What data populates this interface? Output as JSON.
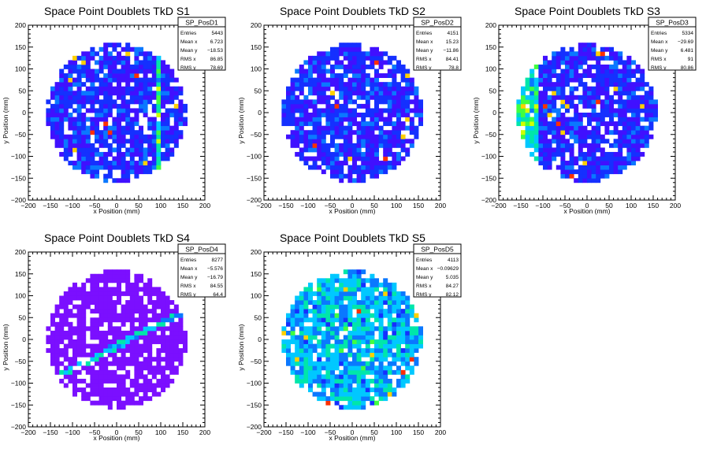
{
  "palette": [
    "#7b0fff",
    "#4010ff",
    "#1530ff",
    "#0a78ff",
    "#00c8ff",
    "#00e6aa",
    "#40ff40",
    "#d0ff00",
    "#ffd000",
    "#ff3000"
  ],
  "chart_data": [
    {
      "type": "heatmap",
      "title": "Space Point Doublets TkD S1",
      "xlabel": "x Position (mm)",
      "ylabel": "y Position (mm)",
      "xlim": [
        -200,
        200
      ],
      "ylim": [
        -200,
        200
      ],
      "xticks": [
        "−200",
        "−150",
        "−100",
        "−50",
        "0",
        "50",
        "100",
        "150",
        "200"
      ],
      "yticks": [
        "−200",
        "−150",
        "−100",
        "−50",
        "0",
        "50",
        "100",
        "150",
        "200"
      ],
      "stats": {
        "name": "SP_PosD1",
        "rows": [
          [
            "Entries",
            "5443"
          ],
          [
            "Mean x",
            "6.723"
          ],
          [
            "Mean y",
            "−18.53"
          ],
          [
            "RMS x",
            "86.85"
          ],
          [
            "RMS y",
            "78.69"
          ]
        ]
      },
      "pattern": "vertical-band"
    },
    {
      "type": "heatmap",
      "title": "Space Point Doublets TkD S2",
      "xlabel": "x Position (mm)",
      "ylabel": "y Position (mm)",
      "xlim": [
        -200,
        200
      ],
      "ylim": [
        -200,
        200
      ],
      "xticks": [
        "−200",
        "−150",
        "−100",
        "−50",
        "0",
        "50",
        "100",
        "150",
        "200"
      ],
      "yticks": [
        "−200",
        "−150",
        "−100",
        "−50",
        "0",
        "50",
        "100",
        "150",
        "200"
      ],
      "stats": {
        "name": "SP_PosD2",
        "rows": [
          [
            "Entries",
            "4151"
          ],
          [
            "Mean x",
            "15.23"
          ],
          [
            "Mean y",
            "−11.86"
          ],
          [
            "RMS x",
            "84.41"
          ],
          [
            "RMS y",
            "78.8"
          ]
        ]
      },
      "pattern": "uniform"
    },
    {
      "type": "heatmap",
      "title": "Space Point Doublets TkD S3",
      "xlabel": "x Position (mm)",
      "ylabel": "y Position (mm)",
      "xlim": [
        -200,
        200
      ],
      "ylim": [
        -200,
        200
      ],
      "xticks": [
        "−200",
        "−150",
        "−100",
        "−50",
        "0",
        "50",
        "100",
        "150",
        "200"
      ],
      "yticks": [
        "−200",
        "−150",
        "−100",
        "−50",
        "0",
        "50",
        "100",
        "150",
        "200"
      ],
      "stats": {
        "name": "SP_PosD3",
        "rows": [
          [
            "Entries",
            "5334"
          ],
          [
            "Mean x",
            "−29.69"
          ],
          [
            "Mean y",
            "6.481"
          ],
          [
            "RMS x",
            "91"
          ],
          [
            "RMS y",
            "80.86"
          ]
        ]
      },
      "pattern": "left-hot"
    },
    {
      "type": "heatmap",
      "title": "Space Point Doublets TkD S4",
      "xlabel": "x Position (mm)",
      "ylabel": "y Position (mm)",
      "xlim": [
        -200,
        200
      ],
      "ylim": [
        -200,
        200
      ],
      "xticks": [
        "−200",
        "−150",
        "−100",
        "−50",
        "0",
        "50",
        "100",
        "150",
        "200"
      ],
      "yticks": [
        "−200",
        "−150",
        "−100",
        "−50",
        "0",
        "50",
        "100",
        "150",
        "200"
      ],
      "stats": {
        "name": "SP_PosD4",
        "rows": [
          [
            "Entries",
            "8277"
          ],
          [
            "Mean x",
            "−5.576"
          ],
          [
            "Mean y",
            "−16.79"
          ],
          [
            "RMS x",
            "84.55"
          ],
          [
            "RMS y",
            "64.4"
          ]
        ]
      },
      "pattern": "diagonal"
    },
    {
      "type": "heatmap",
      "title": "Space Point Doublets TkD S5",
      "xlabel": "x Position (mm)",
      "ylabel": "y Position (mm)",
      "xlim": [
        -200,
        200
      ],
      "ylim": [
        -200,
        200
      ],
      "xticks": [
        "−200",
        "−150",
        "−100",
        "−50",
        "0",
        "50",
        "100",
        "150",
        "200"
      ],
      "yticks": [
        "−200",
        "−150",
        "−100",
        "−50",
        "0",
        "50",
        "100",
        "150",
        "200"
      ],
      "stats": {
        "name": "SP_PosD5",
        "rows": [
          [
            "Entries",
            "4113"
          ],
          [
            "Mean x",
            "−0.09629"
          ],
          [
            "Mean y",
            "5.035"
          ],
          [
            "RMS x",
            "84.27"
          ],
          [
            "RMS y",
            "82.12"
          ]
        ]
      },
      "pattern": "bright-uniform"
    }
  ]
}
